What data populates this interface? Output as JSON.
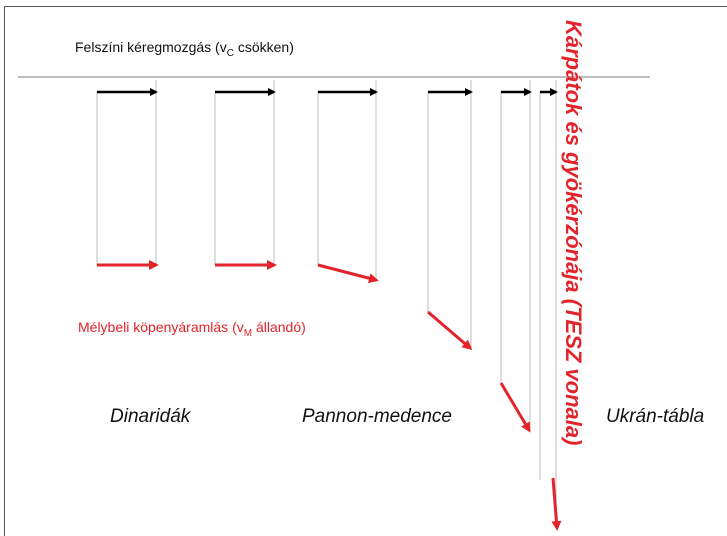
{
  "top_label": {
    "text": "Felszíni kéregmozgás (v",
    "subscript": "C",
    "rest": " csökken)"
  },
  "bottom_label": {
    "text": "Mélybeli köpenyáramlás (v",
    "subscript": "M",
    "rest": " állandó)"
  },
  "regions": [
    "Dinaridák",
    "Pannon-medence",
    "Ukrán-tábla"
  ],
  "vertical_label": "Kárpátok és gyökérzónája (TESZ vonala)"
}
